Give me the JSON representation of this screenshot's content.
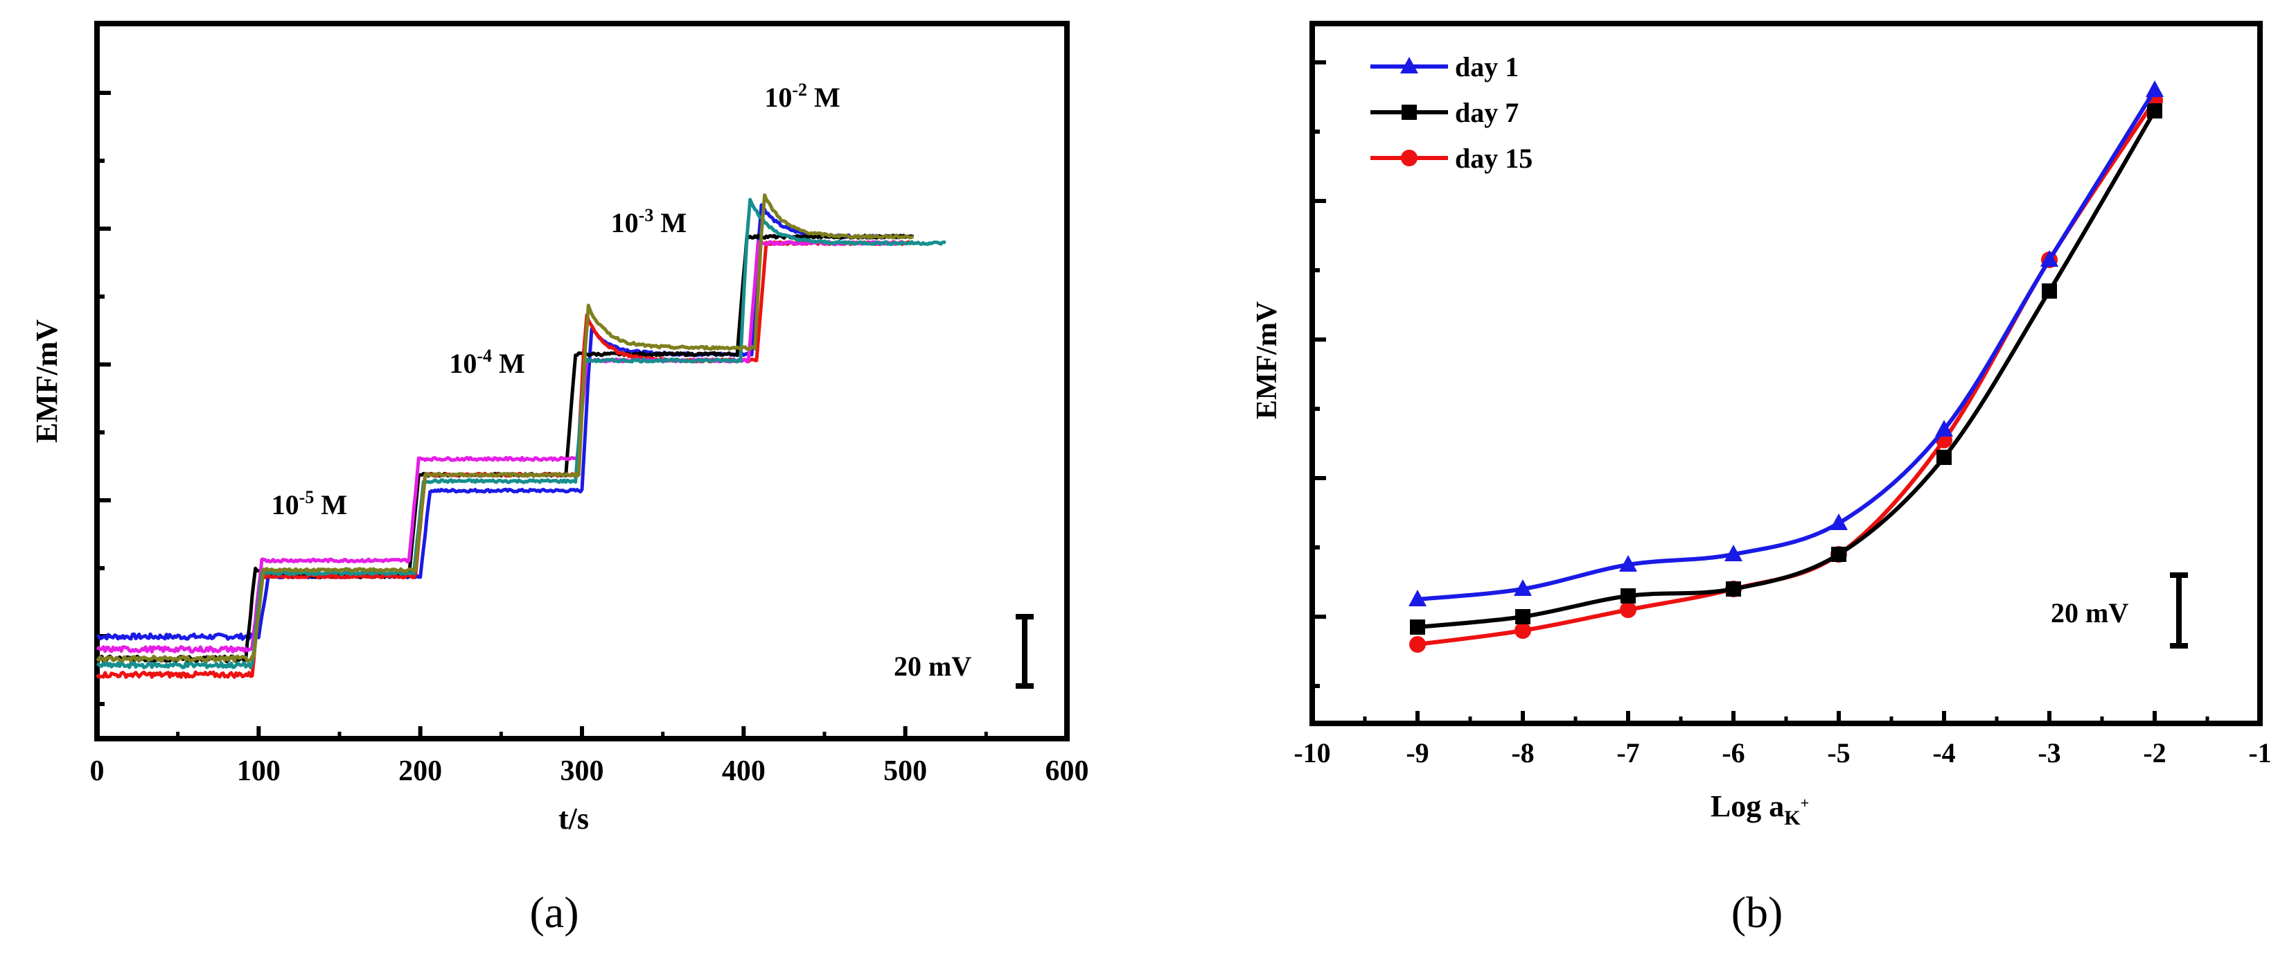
{
  "chart_data": [
    {
      "type": "line",
      "panel_label": "(a)",
      "xlabel": "t/s",
      "ylabel": "EMF/mV",
      "xlim": [
        0,
        600
      ],
      "x_ticks": [
        "0",
        "100",
        "200",
        "300",
        "400",
        "500",
        "600"
      ],
      "y_tick_labels": "none",
      "scale_bar": "20 mV",
      "annotations": [
        {
          "base": "10",
          "exp": "-5",
          "unit": " M",
          "at_t": 140
        },
        {
          "base": "10",
          "exp": "-4",
          "unit": " M",
          "at_t": 250
        },
        {
          "base": "10",
          "exp": "-3",
          "unit": " M",
          "at_t": 350
        },
        {
          "base": "10",
          "exp": "-2",
          "unit": " M",
          "at_t": 445
        }
      ],
      "series": [
        {
          "name": "blue",
          "color": "#1a1ae6",
          "t_end": 500,
          "levels": [
            -3,
            16,
            43,
            86,
            123
          ],
          "step_t": [
            100,
            200,
            300,
            405
          ],
          "overshoot": [
            0,
            0,
            8,
            10
          ]
        },
        {
          "name": "black",
          "color": "#000000",
          "t_end": 505,
          "levels": [
            -10,
            16,
            48,
            86,
            123
          ],
          "step_t": [
            92,
            193,
            290,
            396
          ],
          "overshoot": [
            2,
            0,
            0,
            0
          ]
        },
        {
          "name": "red",
          "color": "#ee1111",
          "t_end": 505,
          "levels": [
            -15,
            16,
            48,
            84,
            121
          ],
          "step_t": [
            96,
            197,
            297,
            408
          ],
          "overshoot": [
            0,
            0,
            14,
            0
          ]
        },
        {
          "name": "magenta",
          "color": "#e61ee6",
          "t_end": 500,
          "levels": [
            -7,
            21,
            53,
            84,
            121
          ],
          "step_t": [
            96,
            193,
            297,
            403
          ],
          "overshoot": [
            0,
            0,
            0,
            0
          ]
        },
        {
          "name": "teal",
          "color": "#178f8f",
          "t_end": 525,
          "levels": [
            -12,
            17,
            46,
            84,
            121
          ],
          "step_t": [
            96,
            196,
            296,
            398
          ],
          "overshoot": [
            0,
            0,
            0,
            14
          ]
        },
        {
          "name": "olive",
          "color": "#7f7f1f",
          "t_end": 505,
          "levels": [
            -10,
            18,
            48,
            88,
            123
          ],
          "step_t": [
            97,
            197,
            298,
            407
          ],
          "overshoot": [
            0,
            0,
            13,
            13
          ]
        }
      ]
    },
    {
      "type": "line",
      "panel_label": "(b)",
      "xlabel": "Log a",
      "xlabel_sub": "K",
      "xlabel_sup": "+",
      "ylabel": "EMF/mV",
      "xlim": [
        -10,
        -1
      ],
      "x_ticks": [
        "-10",
        "-9",
        "-8",
        "-7",
        "-6",
        "-5",
        "-4",
        "-3",
        "-2",
        "-1"
      ],
      "y_tick_labels": "none",
      "scale_bar": "20 mV",
      "x": [
        -9,
        -8,
        -7,
        -6,
        -5,
        -4,
        -3,
        -2
      ],
      "series": [
        {
          "name": "day 1",
          "color": "#1a1ae6",
          "marker": "triangle",
          "values": [
            5,
            8,
            15,
            18,
            27,
            54,
            103,
            152
          ]
        },
        {
          "name": "day 7",
          "color": "#000000",
          "marker": "square",
          "values": [
            -3,
            0,
            6,
            8,
            18,
            46,
            94,
            146
          ]
        },
        {
          "name": "day 15",
          "color": "#ee1111",
          "marker": "circle",
          "values": [
            -8,
            -4,
            2,
            8,
            18,
            51,
            103,
            149
          ]
        }
      ]
    }
  ]
}
